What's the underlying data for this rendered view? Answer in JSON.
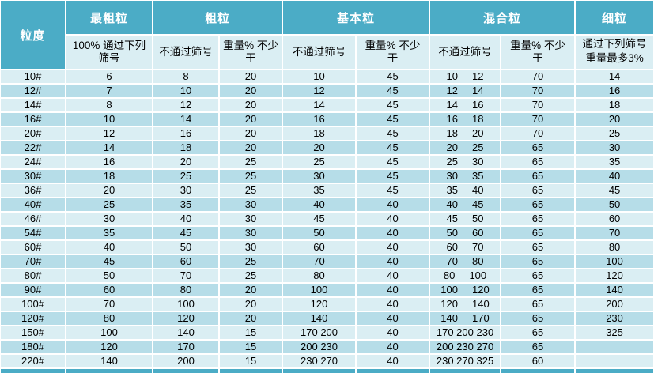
{
  "colors": {
    "header_teal": "#4BACC6",
    "row_light": "#DAEEF3",
    "row_dark": "#B6DDE8",
    "grid": "#FFFFFF",
    "header_text": "#FFFFFF",
    "body_text": "#000000"
  },
  "table": {
    "corner_label": "粒度",
    "groups": [
      {
        "label": "最粗粒"
      },
      {
        "label": "粗粒"
      },
      {
        "label": "基本粒"
      },
      {
        "label": "混合粒"
      },
      {
        "label": "细粒"
      }
    ],
    "subheaders": {
      "coarsest": "100% 通过下列筛号",
      "sieve": "不通过筛号",
      "weight": "重量%  不少于",
      "fine": "通过下列筛号重量最多3%"
    },
    "column_fields": [
      "size",
      "coarsest-pass",
      "coarse-sieve",
      "coarse-weight",
      "basic-sieve",
      "basic-weight",
      "mixed-sieve",
      "mixed-weight",
      "fine-pass"
    ],
    "rows": [
      [
        "10#",
        "6",
        "8",
        "20",
        "10",
        "45",
        "10     12",
        "70",
        "14"
      ],
      [
        "12#",
        "7",
        "10",
        "20",
        "12",
        "45",
        "12     14",
        "70",
        "16"
      ],
      [
        "14#",
        "8",
        "12",
        "20",
        "14",
        "45",
        "14     16",
        "70",
        "18"
      ],
      [
        "16#",
        "10",
        "14",
        "20",
        "16",
        "45",
        "16     18",
        "70",
        "20"
      ],
      [
        "20#",
        "12",
        "16",
        "20",
        "18",
        "45",
        "18     20",
        "70",
        "25"
      ],
      [
        "22#",
        "14",
        "18",
        "20",
        "20",
        "45",
        "20     25",
        "65",
        "30"
      ],
      [
        "24#",
        "16",
        "20",
        "25",
        "25",
        "45",
        "25     30",
        "65",
        "35"
      ],
      [
        "30#",
        "18",
        "25",
        "25",
        "30",
        "45",
        "30     35",
        "65",
        "40"
      ],
      [
        "36#",
        "20",
        "30",
        "25",
        "35",
        "45",
        "35     40",
        "65",
        "45"
      ],
      [
        "40#",
        "25",
        "35",
        "30",
        "40",
        "40",
        "40     45",
        "65",
        "50"
      ],
      [
        "46#",
        "30",
        "40",
        "30",
        "45",
        "40",
        "45     50",
        "65",
        "60"
      ],
      [
        "54#",
        "35",
        "45",
        "30",
        "50",
        "40",
        "50     60",
        "65",
        "70"
      ],
      [
        "60#",
        "40",
        "50",
        "30",
        "60",
        "40",
        "60     70",
        "65",
        "80"
      ],
      [
        "70#",
        "45",
        "60",
        "25",
        "70",
        "40",
        "70     80",
        "65",
        "100"
      ],
      [
        "80#",
        "50",
        "70",
        "25",
        "80",
        "40",
        "80     100",
        "65",
        "120"
      ],
      [
        "90#",
        "60",
        "80",
        "20",
        "100",
        "40",
        "100     120",
        "65",
        "140"
      ],
      [
        "100#",
        "70",
        "100",
        "20",
        "120",
        "40",
        "120     140",
        "65",
        "200"
      ],
      [
        "120#",
        "80",
        "120",
        "20",
        "140",
        "40",
        "140     170",
        "65",
        "230"
      ],
      [
        "150#",
        "100",
        "140",
        "15",
        "170 200",
        "40",
        "170 200 230",
        "65",
        "325"
      ],
      [
        "180#",
        "120",
        "170",
        "15",
        "200 230",
        "40",
        "200 230 270",
        "65",
        ""
      ],
      [
        "220#",
        "140",
        "200",
        "15",
        "230 270",
        "40",
        "230 270 325",
        "60",
        ""
      ]
    ]
  }
}
